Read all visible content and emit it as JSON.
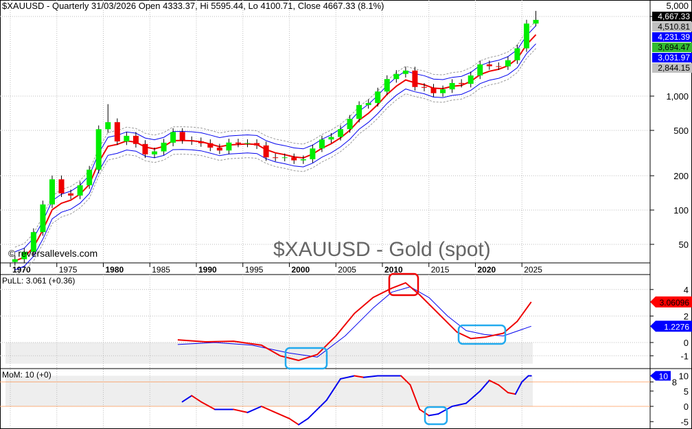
{
  "header": {
    "title": "$XAUUSD - Quarterly 31/03/2026 Open 4333.37, Hi 5595.44, Lo 4100.71, Close 4667.33 (8.1%)"
  },
  "watermark": {
    "site": "© reversallevels.com",
    "name": "$XAUUSD - Gold (spot)"
  },
  "chart_data": [
    {
      "type": "candlestick",
      "title": "$XAUUSD - Gold (spot)",
      "scale": "log",
      "x_ticks": [
        "1970",
        "1975",
        "1980",
        "1985",
        "1990",
        "1995",
        "2000",
        "2005",
        "2010",
        "2015",
        "2020",
        "2025"
      ],
      "bold_ticks": [
        "1970",
        "1980",
        "1990",
        "2000",
        "2010",
        "2020"
      ],
      "y_ticks": [
        {
          "v": 5000,
          "label": "5,000"
        },
        {
          "v": 1000,
          "label": "1,000"
        },
        {
          "v": 500,
          "label": "500"
        },
        {
          "v": 200,
          "label": "200"
        },
        {
          "v": 100,
          "label": "100"
        },
        {
          "v": 50,
          "label": "50"
        }
      ],
      "start_close": 35,
      "years": [
        1970,
        1971,
        1972,
        1973,
        1974,
        1975,
        1976,
        1977,
        1978,
        1979,
        1980,
        1981,
        1982,
        1983,
        1984,
        1985,
        1986,
        1987,
        1988,
        1989,
        1990,
        1991,
        1992,
        1993,
        1994,
        1995,
        1996,
        1997,
        1998,
        1999,
        2000,
        2001,
        2002,
        2003,
        2004,
        2005,
        2006,
        2007,
        2008,
        2009,
        2010,
        2011,
        2012,
        2013,
        2014,
        2015,
        2016,
        2017,
        2018,
        2019,
        2020,
        2021,
        2022,
        2023,
        2024,
        2025,
        2026
      ],
      "closes": [
        37,
        43,
        64,
        112,
        186,
        140,
        134,
        165,
        226,
        512,
        590,
        400,
        448,
        380,
        308,
        327,
        390,
        484,
        410,
        401,
        386,
        353,
        333,
        391,
        383,
        387,
        369,
        290,
        288,
        290,
        273,
        279,
        347,
        416,
        438,
        513,
        632,
        834,
        870,
        1097,
        1410,
        1565,
        1675,
        1202,
        1184,
        1061,
        1146,
        1303,
        1281,
        1517,
        1898,
        1829,
        1824,
        2063,
        2625,
        4330,
        4667.33
      ],
      "last_bar": {
        "open": 4333.37,
        "high": 5595.44,
        "low": 4100.71,
        "close": 4667.33,
        "change": "8.1%"
      },
      "price_labels": [
        {
          "label": "4,667.33",
          "v": 4667.33,
          "color": "#000000",
          "text": "#ffffff"
        },
        {
          "label": "4,510.81",
          "v": 4510.81,
          "color": "#c0c0c0",
          "text": "#000000"
        },
        {
          "label": "4,231.39",
          "v": 4231.39,
          "color": "#0000ff",
          "text": "#ffffff"
        },
        {
          "label": "3,694.47",
          "v": 3694.47,
          "color": "#33bb33",
          "text": "#000000"
        },
        {
          "label": "3,031.97",
          "v": 3031.97,
          "color": "#0000ff",
          "text": "#ffffff"
        },
        {
          "label": "2,844.15",
          "v": 2844.15,
          "color": "#c0c0c0",
          "text": "#000000"
        }
      ],
      "colors": {
        "up": "#00ee00",
        "down": "#ee0000",
        "ma": "#ee0000",
        "band": "#0000ee"
      }
    },
    {
      "type": "line",
      "title": "PuLL: 3.061 (+0.36)",
      "y_ticks": [
        "4",
        "2",
        "0",
        "-1"
      ],
      "ylim": [
        -1.7,
        5
      ],
      "series": [
        {
          "name": "PuLL",
          "color": "#ee0000",
          "points": [
            [
              1988,
              0.2
            ],
            [
              1991,
              0.05
            ],
            [
              1994,
              0.1
            ],
            [
              1997,
              -0.2
            ],
            [
              1999,
              -1.0
            ],
            [
              2001,
              -1.35
            ],
            [
              2003,
              -0.9
            ],
            [
              2005,
              0.5
            ],
            [
              2007,
              2.2
            ],
            [
              2009,
              3.4
            ],
            [
              2011,
              4.1
            ],
            [
              2012.5,
              4.5
            ],
            [
              2014,
              3.6
            ],
            [
              2016,
              2.2
            ],
            [
              2018,
              0.8
            ],
            [
              2019.5,
              0.3
            ],
            [
              2021,
              0.4
            ],
            [
              2023,
              0.7
            ],
            [
              2024.5,
              1.6
            ],
            [
              2026,
              3.06
            ]
          ]
        },
        {
          "name": "Signal",
          "color": "#0000ee",
          "points": [
            [
              1988,
              -0.15
            ],
            [
              1992,
              0.0
            ],
            [
              1996,
              -0.2
            ],
            [
              2000,
              -0.8
            ],
            [
              2003,
              -1.1
            ],
            [
              2006,
              0.5
            ],
            [
              2009,
              2.6
            ],
            [
              2011,
              3.8
            ],
            [
              2013,
              4.2
            ],
            [
              2015,
              3.4
            ],
            [
              2017,
              2.0
            ],
            [
              2019,
              0.9
            ],
            [
              2021,
              0.6
            ],
            [
              2023,
              0.5
            ],
            [
              2026,
              1.23
            ]
          ]
        }
      ],
      "value_labels": [
        {
          "label": "3.06096",
          "v": 3.06096,
          "color": "#ff0000"
        },
        {
          "label": "1.2276",
          "v": 1.2276,
          "color": "#0000ff"
        }
      ]
    },
    {
      "type": "line",
      "title": "MoM: 10 (+0)",
      "y_ticks": [
        "10",
        "8",
        "5",
        "0",
        "-5"
      ],
      "ylim": [
        -7,
        12
      ],
      "reference_line": 8,
      "series": [
        {
          "name": "MoM",
          "points": [
            [
              1988.5,
              1.5
            ],
            [
              1989.5,
              3.5
            ],
            [
              1990.5,
              1.5
            ],
            [
              1992,
              -1
            ],
            [
              1994,
              -1
            ],
            [
              1995.5,
              -2
            ],
            [
              1997,
              0
            ],
            [
              1998.5,
              -2
            ],
            [
              2000,
              -4
            ],
            [
              2001,
              -6
            ],
            [
              2002,
              -4
            ],
            [
              2004,
              2
            ],
            [
              2005.5,
              9
            ],
            [
              2007,
              10
            ],
            [
              2008,
              9.5
            ],
            [
              2009.5,
              10
            ],
            [
              2012,
              10
            ],
            [
              2013,
              7
            ],
            [
              2014,
              -1
            ],
            [
              2015,
              -3
            ],
            [
              2016,
              -2.5
            ],
            [
              2017.5,
              0
            ],
            [
              2019,
              1
            ],
            [
              2020.5,
              5
            ],
            [
              2021.5,
              8.5
            ],
            [
              2022.5,
              7
            ],
            [
              2023.5,
              4.5
            ],
            [
              2024.3,
              4
            ],
            [
              2025,
              8
            ],
            [
              2025.7,
              10
            ],
            [
              2026,
              10
            ]
          ]
        }
      ],
      "value_labels": [
        {
          "label": "10",
          "v": 10,
          "color": "#0000ff"
        }
      ]
    }
  ]
}
